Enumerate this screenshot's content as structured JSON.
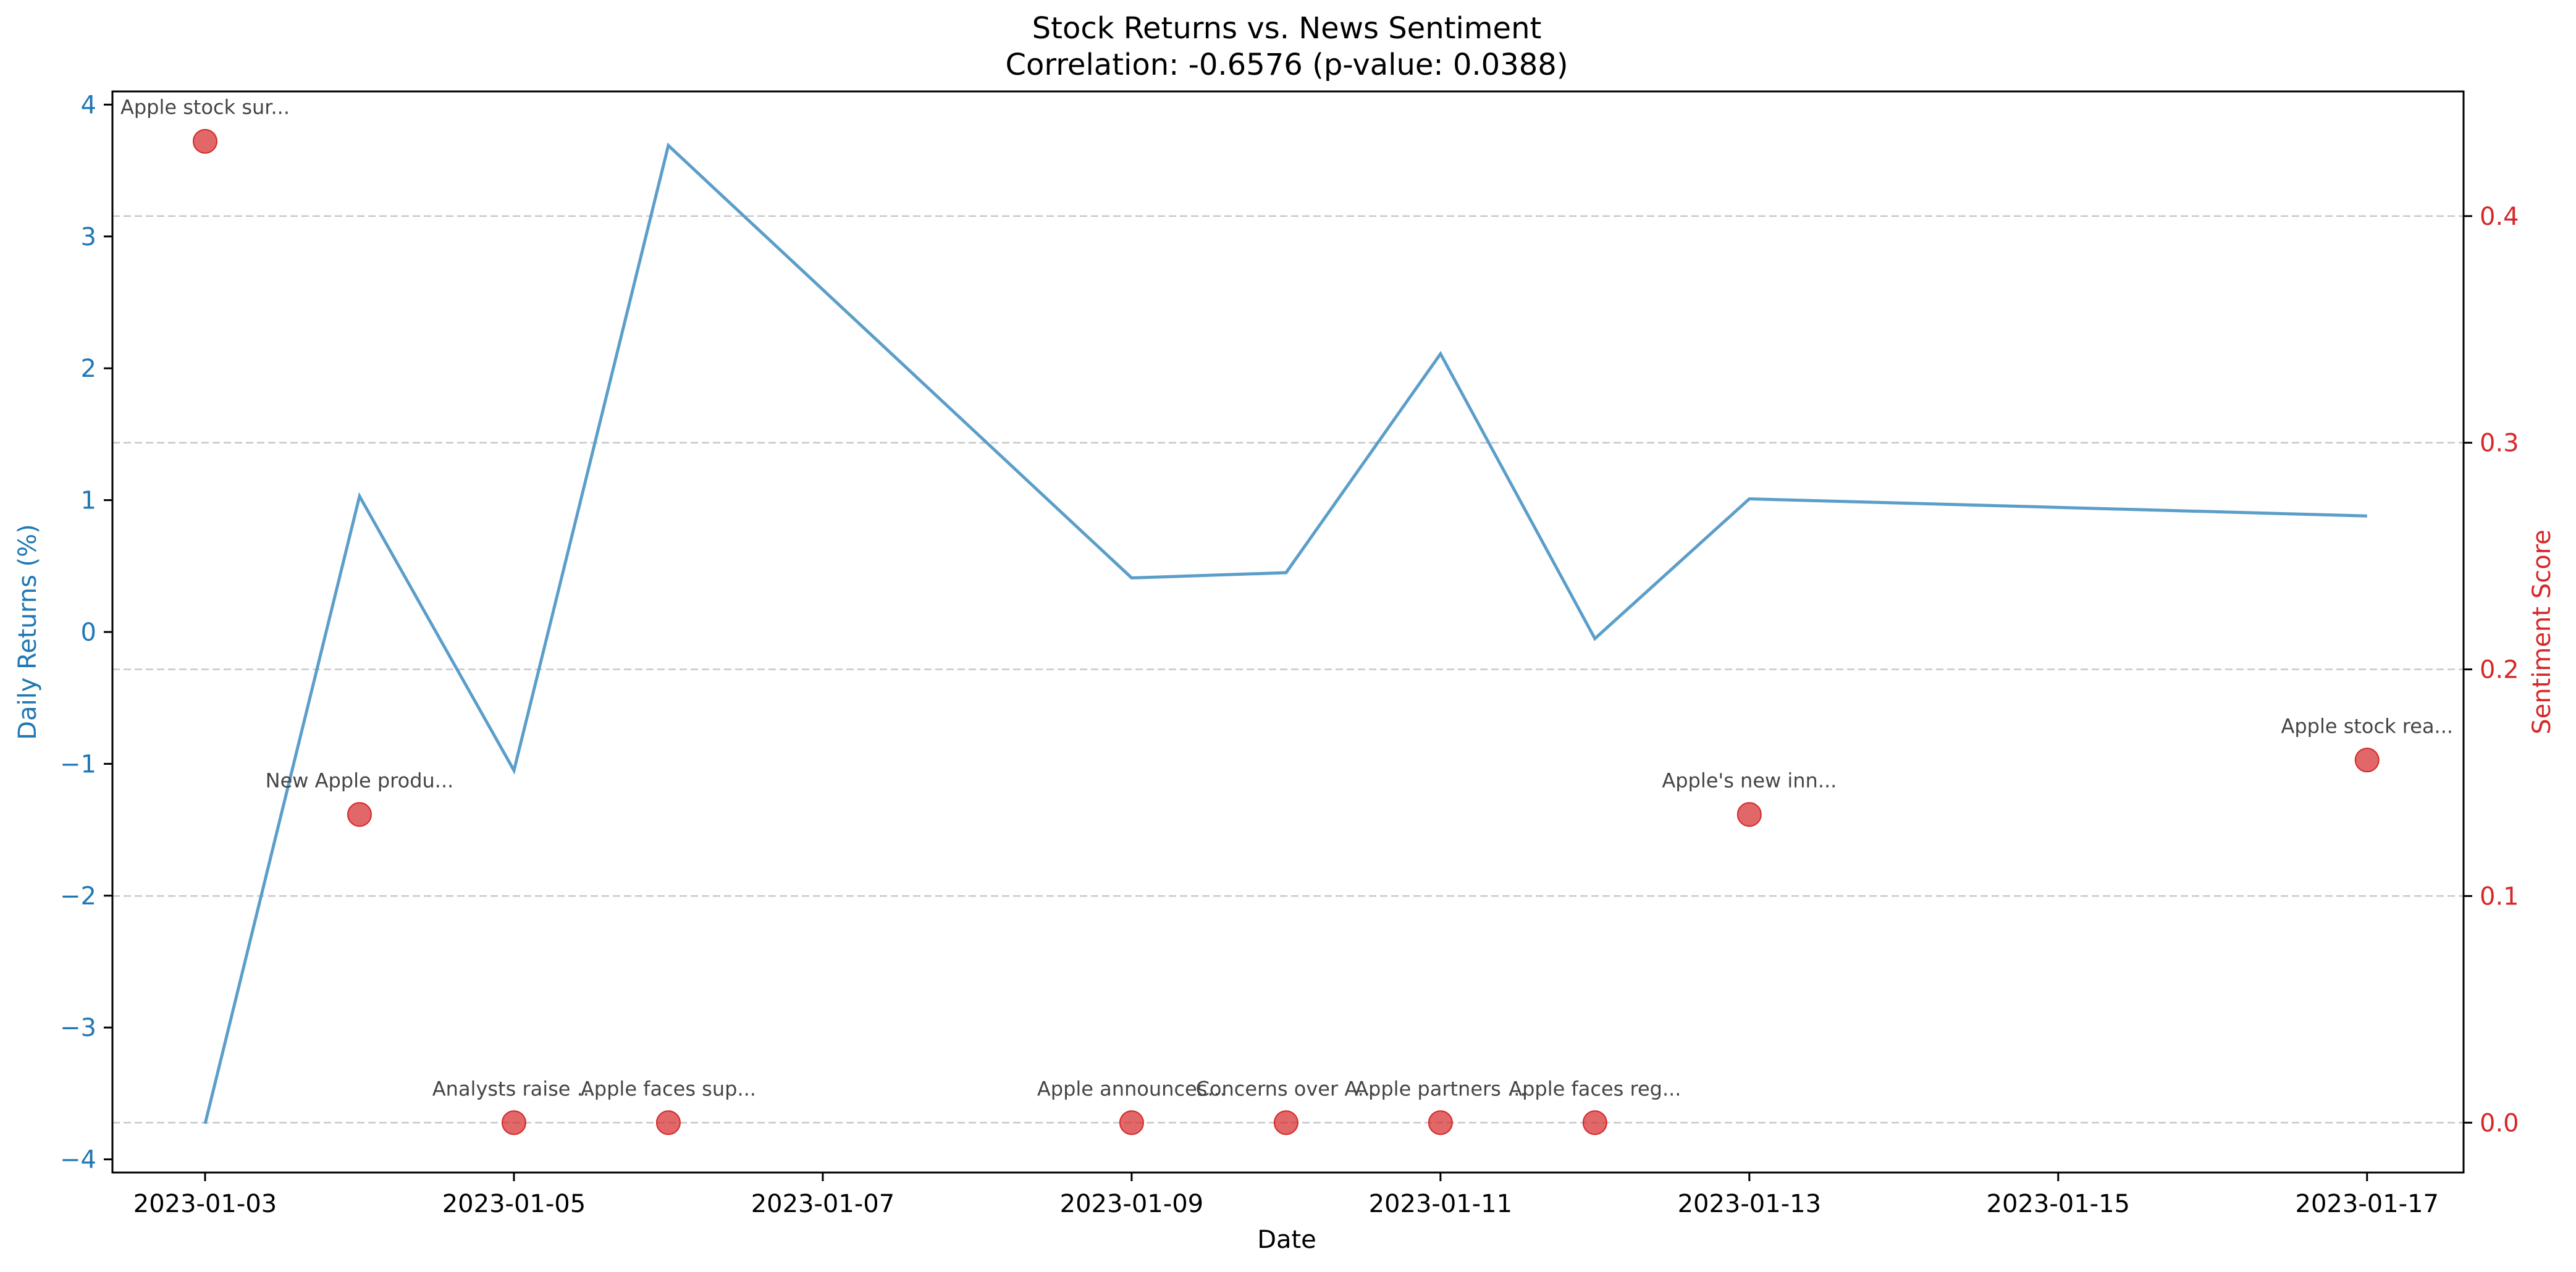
{
  "chart_data": {
    "type": "line",
    "title": "Stock Returns vs. News Sentiment",
    "subtitle": "Correlation: -0.6576 (p-value: 0.0388)",
    "xlabel": "Date",
    "ylabel_left": "Daily Returns (%)",
    "ylabel_right": "Sentiment Score",
    "x_ticks": [
      "2023-01-03",
      "2023-01-05",
      "2023-01-07",
      "2023-01-09",
      "2023-01-11",
      "2023-01-13",
      "2023-01-15",
      "2023-01-17"
    ],
    "xlim": [
      "2023-01-02T09:36",
      "2023-01-17T15:00"
    ],
    "y_left_ticks": [
      4,
      3,
      2,
      1,
      0,
      -1,
      -2,
      -3,
      -4
    ],
    "y_left_tick_labels": [
      "4",
      "3",
      "2",
      "1",
      "0",
      "−1",
      "−2",
      "−3",
      "−4"
    ],
    "ylim_left": [
      -4.1,
      4.1
    ],
    "y_right_ticks": [
      0.4,
      0.3,
      0.2,
      0.1,
      0.0
    ],
    "y_right_tick_labels": [
      "0.4",
      "0.3",
      "0.2",
      "0.1",
      "0.0"
    ],
    "ylim_right": [
      -0.022,
      0.455
    ],
    "grid": "horizontal dashed at right-axis ticks",
    "colors": {
      "returns": "#5b9ec9",
      "returns_axis": "#1f77b4",
      "sentiment": "#d62728",
      "grid": "#c8c8c8",
      "annotation": "#444444"
    },
    "returns_series": [
      {
        "date": "2023-01-03",
        "value": -3.73
      },
      {
        "date": "2023-01-04",
        "value": 1.03
      },
      {
        "date": "2023-01-05",
        "value": -1.05
      },
      {
        "date": "2023-01-06",
        "value": 3.69
      },
      {
        "date": "2023-01-09",
        "value": 0.41
      },
      {
        "date": "2023-01-10",
        "value": 0.45
      },
      {
        "date": "2023-01-11",
        "value": 2.11
      },
      {
        "date": "2023-01-12",
        "value": -0.05
      },
      {
        "date": "2023-01-13",
        "value": 1.01
      },
      {
        "date": "2023-01-17",
        "value": 0.88
      }
    ],
    "sentiment_points": [
      {
        "date": "2023-01-03",
        "score": 0.433,
        "label": "Apple stock sur..."
      },
      {
        "date": "2023-01-04",
        "score": 0.136,
        "label": "New Apple produ..."
      },
      {
        "date": "2023-01-05",
        "score": 0.0,
        "label": "Analysts raise ..."
      },
      {
        "date": "2023-01-06",
        "score": 0.0,
        "label": "Apple faces sup..."
      },
      {
        "date": "2023-01-09",
        "score": 0.0,
        "label": "Apple announces..."
      },
      {
        "date": "2023-01-10",
        "score": 0.0,
        "label": "Concerns over A..."
      },
      {
        "date": "2023-01-11",
        "score": 0.0,
        "label": "Apple partners ..."
      },
      {
        "date": "2023-01-12",
        "score": 0.0,
        "label": "Apple faces reg..."
      },
      {
        "date": "2023-01-13",
        "score": 0.136,
        "label": "Apple's new inn..."
      },
      {
        "date": "2023-01-17",
        "score": 0.16,
        "label": "Apple stock rea..."
      }
    ]
  }
}
